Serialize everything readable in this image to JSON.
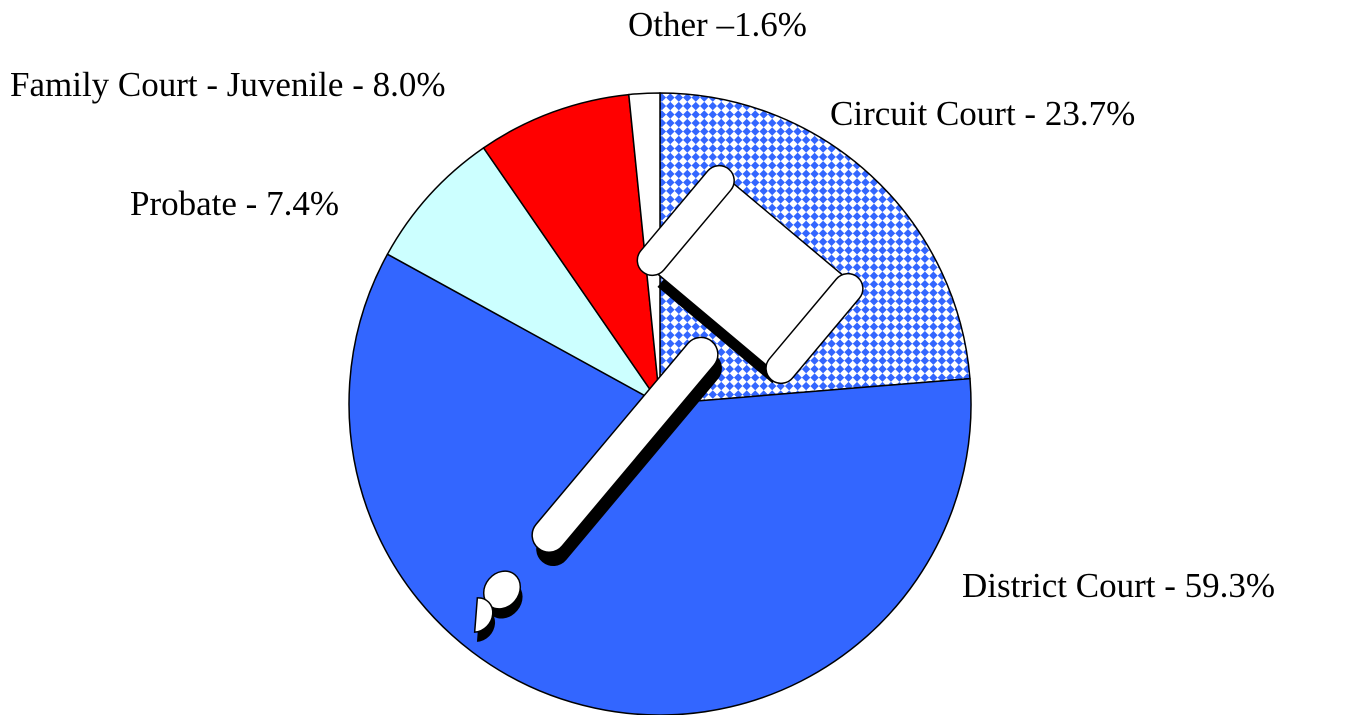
{
  "chart_data": {
    "type": "pie",
    "values": [
      23.7,
      59.3,
      7.4,
      8.0,
      1.6
    ],
    "value_labels": [
      "Circuit Court - 23.7%",
      "District Court - 59.3%",
      "Probate - 7.4%",
      "Family Court - Juvenile - 8.0%",
      "Other –1.6%"
    ],
    "colors": [
      "#3366ff",
      "#3366ff",
      "#ccffff",
      "#ff0000",
      "#ffffff"
    ],
    "checkered": [
      true,
      false,
      false,
      false,
      false
    ]
  }
}
